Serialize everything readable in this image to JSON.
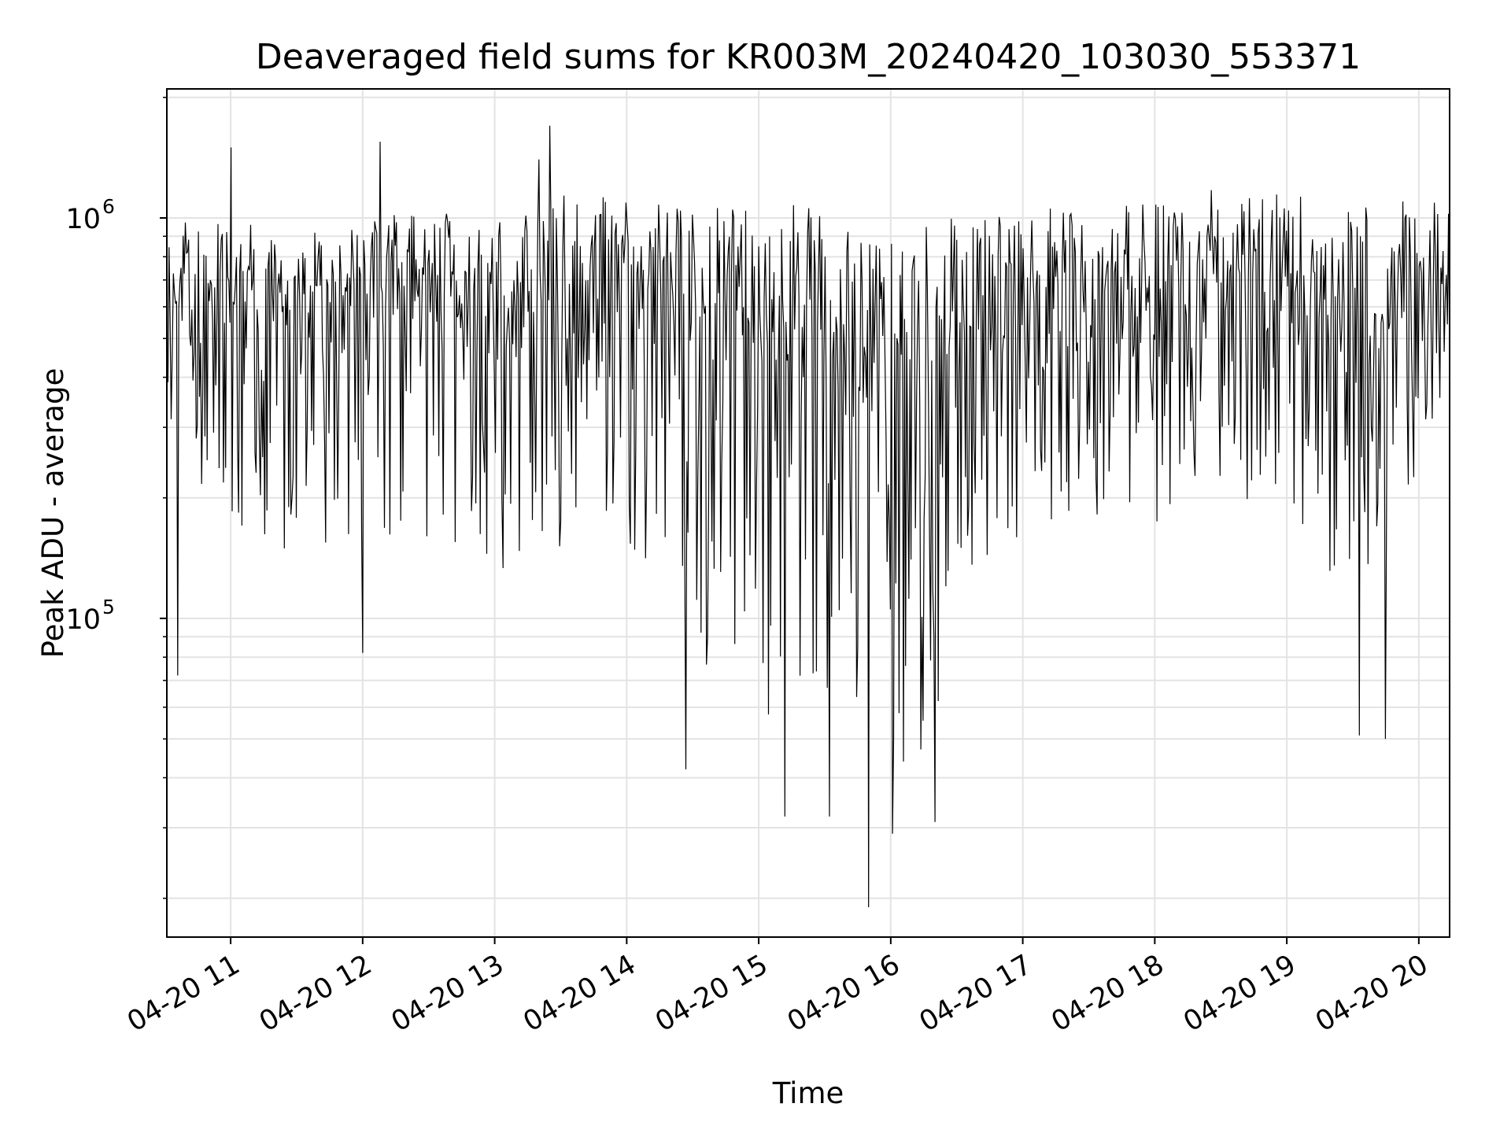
{
  "chart_data": {
    "type": "line",
    "title": "Deaveraged field sums for KR003M_20240420_103030_553371",
    "xlabel": "Time",
    "ylabel": "Peak ADU - average",
    "yscale": "log",
    "ylim": [
      16000,
      2100000
    ],
    "xlim": [
      "2024-04-20 10:31",
      "2024-04-20 20:14"
    ],
    "grid": true,
    "line_color": "#000000",
    "x_ticks": [
      {
        "time": "2024-04-20 11:00",
        "label": "04-20 11"
      },
      {
        "time": "2024-04-20 12:00",
        "label": "04-20 12"
      },
      {
        "time": "2024-04-20 13:00",
        "label": "04-20 13"
      },
      {
        "time": "2024-04-20 14:00",
        "label": "04-20 14"
      },
      {
        "time": "2024-04-20 15:00",
        "label": "04-20 15"
      },
      {
        "time": "2024-04-20 16:00",
        "label": "04-20 16"
      },
      {
        "time": "2024-04-20 17:00",
        "label": "04-20 17"
      },
      {
        "time": "2024-04-20 18:00",
        "label": "04-20 18"
      },
      {
        "time": "2024-04-20 19:00",
        "label": "04-20 19"
      },
      {
        "time": "2024-04-20 20:00",
        "label": "04-20 20"
      }
    ],
    "y_ticks": [
      {
        "value": 100000,
        "base": "10",
        "exp": "5"
      },
      {
        "value": 1000000,
        "base": "10",
        "exp": "6"
      }
    ],
    "envelope": [
      {
        "time": "2024-04-20 10:31",
        "low": 270000,
        "high": 1050000,
        "typical": 600000
      },
      {
        "time": "2024-04-20 11:00",
        "low": 170000,
        "high": 1000000,
        "typical": 680000
      },
      {
        "time": "2024-04-20 11:30",
        "low": 140000,
        "high": 950000,
        "typical": 560000
      },
      {
        "time": "2024-04-20 12:00",
        "low": 150000,
        "high": 1000000,
        "typical": 600000
      },
      {
        "time": "2024-04-20 12:30",
        "low": 160000,
        "high": 1050000,
        "typical": 620000
      },
      {
        "time": "2024-04-20 13:00",
        "low": 130000,
        "high": 1000000,
        "typical": 560000
      },
      {
        "time": "2024-04-20 13:30",
        "low": 150000,
        "high": 1150000,
        "typical": 630000
      },
      {
        "time": "2024-04-20 14:00",
        "low": 150000,
        "high": 1150000,
        "typical": 680000
      },
      {
        "time": "2024-04-20 14:30",
        "low": 80000,
        "high": 1080000,
        "typical": 600000
      },
      {
        "time": "2024-04-20 15:00",
        "low": 58000,
        "high": 1050000,
        "typical": 480000
      },
      {
        "time": "2024-04-20 15:30",
        "low": 55000,
        "high": 1100000,
        "typical": 450000
      },
      {
        "time": "2024-04-20 16:00",
        "low": 45000,
        "high": 900000,
        "typical": 380000
      },
      {
        "time": "2024-04-20 16:15",
        "low": 42000,
        "high": 950000,
        "typical": 420000
      },
      {
        "time": "2024-04-20 16:30",
        "low": 100000,
        "high": 1050000,
        "typical": 560000
      },
      {
        "time": "2024-04-20 17:00",
        "low": 160000,
        "high": 1050000,
        "typical": 600000
      },
      {
        "time": "2024-04-20 17:30",
        "low": 180000,
        "high": 1100000,
        "typical": 650000
      },
      {
        "time": "2024-04-20 18:00",
        "low": 170000,
        "high": 1100000,
        "typical": 640000
      },
      {
        "time": "2024-04-20 18:30",
        "low": 220000,
        "high": 1200000,
        "typical": 680000
      },
      {
        "time": "2024-04-20 19:00",
        "low": 170000,
        "high": 1150000,
        "typical": 600000
      },
      {
        "time": "2024-04-20 19:30",
        "low": 100000,
        "high": 1100000,
        "typical": 500000
      },
      {
        "time": "2024-04-20 19:50",
        "low": 160000,
        "high": 1100000,
        "typical": 560000
      },
      {
        "time": "2024-04-20 20:14",
        "low": 400000,
        "high": 1150000,
        "typical": 780000
      }
    ],
    "notable_points": [
      {
        "time": "2024-04-20 10:36",
        "value": 72000
      },
      {
        "time": "2024-04-20 11:00",
        "value": 1500000
      },
      {
        "time": "2024-04-20 12:00",
        "value": 82000
      },
      {
        "time": "2024-04-20 12:08",
        "value": 1550000
      },
      {
        "time": "2024-04-20 13:20",
        "value": 1400000
      },
      {
        "time": "2024-04-20 13:25",
        "value": 1700000
      },
      {
        "time": "2024-04-20 14:27",
        "value": 42000
      },
      {
        "time": "2024-04-20 15:12",
        "value": 32000
      },
      {
        "time": "2024-04-20 15:32",
        "value": 32000
      },
      {
        "time": "2024-04-20 15:50",
        "value": 19000
      },
      {
        "time": "2024-04-20 16:01",
        "value": 29000
      },
      {
        "time": "2024-04-20 16:20",
        "value": 31000
      },
      {
        "time": "2024-04-20 19:33",
        "value": 51000
      },
      {
        "time": "2024-04-20 19:45",
        "value": 50000
      }
    ],
    "sample_count": 1180
  }
}
